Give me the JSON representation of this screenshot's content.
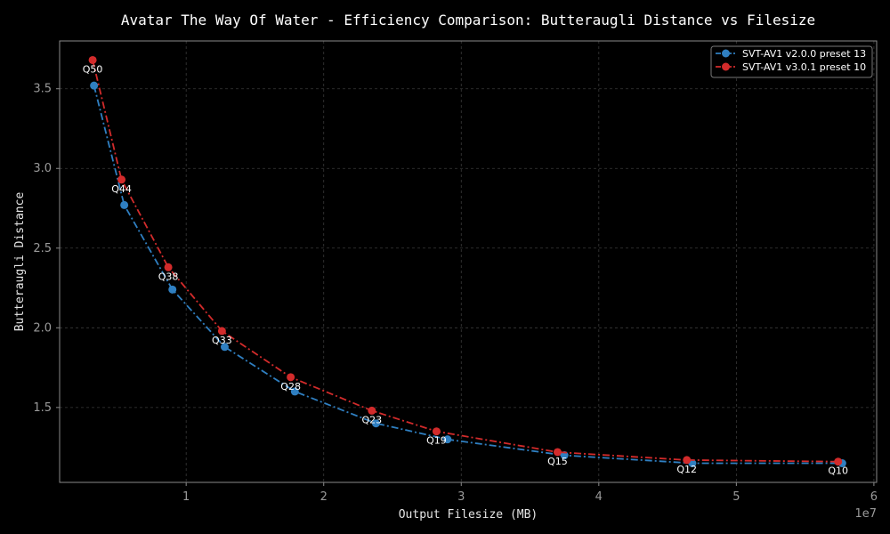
{
  "chart_data": {
    "type": "line",
    "title": "Avatar The Way Of Water - Efficiency Comparison: Butteraugli Distance vs Filesize",
    "xlabel": "Output Filesize (MB)",
    "ylabel": "Butteraugli Distance",
    "x_offset_label": "1e7",
    "xlim": [
      0.08,
      6.02
    ],
    "ylim": [
      1.03,
      3.8
    ],
    "xticks": [
      1,
      2,
      3,
      4,
      5,
      6
    ],
    "yticks": [
      1.5,
      2.0,
      2.5,
      3.0,
      3.5
    ],
    "grid": true,
    "legend_position": "top-right",
    "series": [
      {
        "name": "SVT-AV1 v2.0.0 preset 13",
        "color": "#2f7fc1",
        "x": [
          0.33,
          0.55,
          0.9,
          1.28,
          1.79,
          2.38,
          2.9,
          3.75,
          4.68,
          5.77
        ],
        "y": [
          3.52,
          2.77,
          2.24,
          1.88,
          1.6,
          1.4,
          1.3,
          1.2,
          1.15,
          1.15
        ]
      },
      {
        "name": "SVT-AV1 v3.0.1 preset 10",
        "color": "#d22b2b",
        "x": [
          0.32,
          0.53,
          0.87,
          1.26,
          1.76,
          2.35,
          2.82,
          3.7,
          4.64,
          5.74
        ],
        "y": [
          3.68,
          2.93,
          2.38,
          1.98,
          1.69,
          1.48,
          1.35,
          1.22,
          1.17,
          1.16
        ]
      }
    ],
    "annotations": [
      {
        "text": "Q50",
        "x": 0.32,
        "y": 3.68
      },
      {
        "text": "Q44",
        "x": 0.53,
        "y": 2.93
      },
      {
        "text": "Q38",
        "x": 0.87,
        "y": 2.38
      },
      {
        "text": "Q33",
        "x": 1.26,
        "y": 1.98
      },
      {
        "text": "Q28",
        "x": 1.76,
        "y": 1.69
      },
      {
        "text": "Q23",
        "x": 2.35,
        "y": 1.48
      },
      {
        "text": "Q19",
        "x": 2.82,
        "y": 1.35
      },
      {
        "text": "Q15",
        "x": 3.7,
        "y": 1.22
      },
      {
        "text": "Q12",
        "x": 4.64,
        "y": 1.17
      },
      {
        "text": "Q10",
        "x": 5.74,
        "y": 1.16
      }
    ]
  }
}
